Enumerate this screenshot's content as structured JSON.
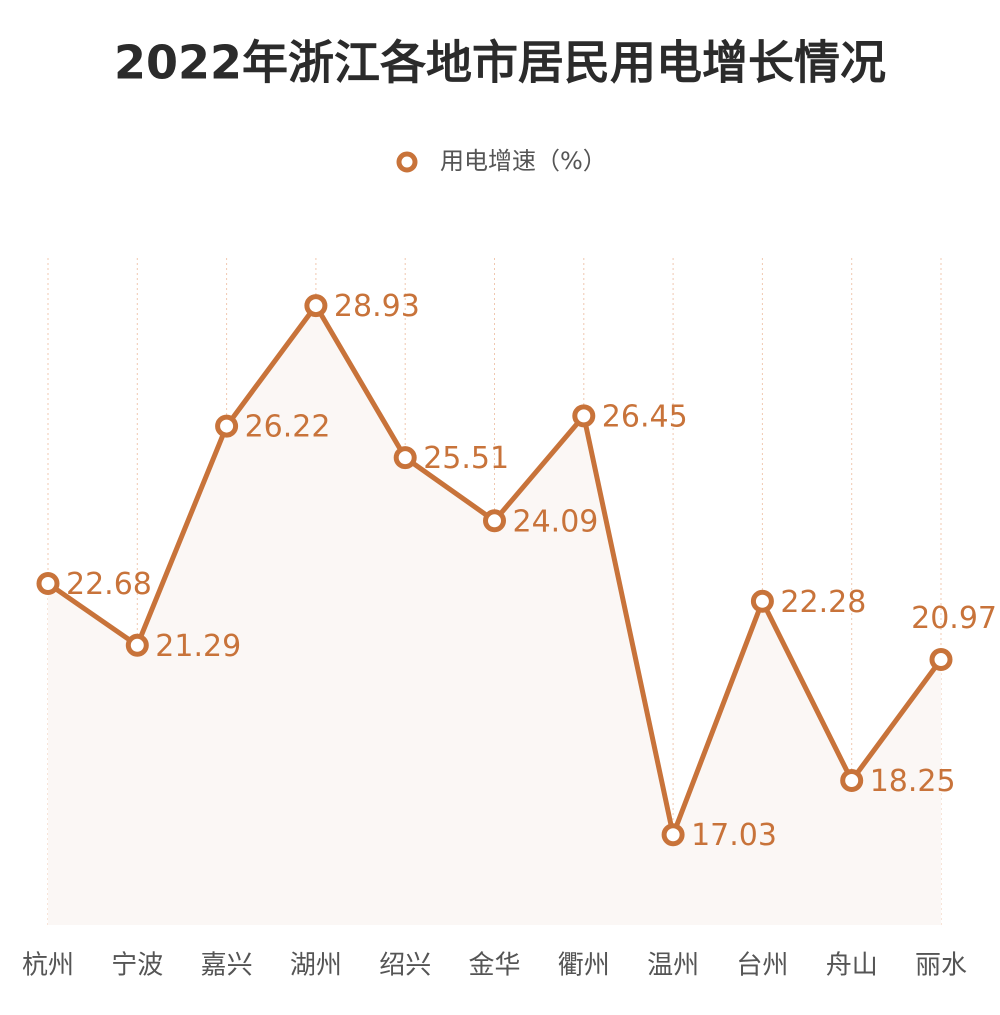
{
  "chart_data": {
    "type": "line",
    "title": "2022年浙江各地市居民用电增长情况",
    "categories": [
      "杭州",
      "宁波",
      "嘉兴",
      "湖州",
      "绍兴",
      "金华",
      "衢州",
      "温州",
      "台州",
      "舟山",
      "丽水"
    ],
    "series": [
      {
        "name": "用电增速（%）",
        "color": "#c8733a",
        "values": [
          22.68,
          21.29,
          26.22,
          28.93,
          25.51,
          24.09,
          26.45,
          17.03,
          22.28,
          18.25,
          20.97
        ]
      }
    ],
    "ylim": [
      15,
      30
    ]
  }
}
